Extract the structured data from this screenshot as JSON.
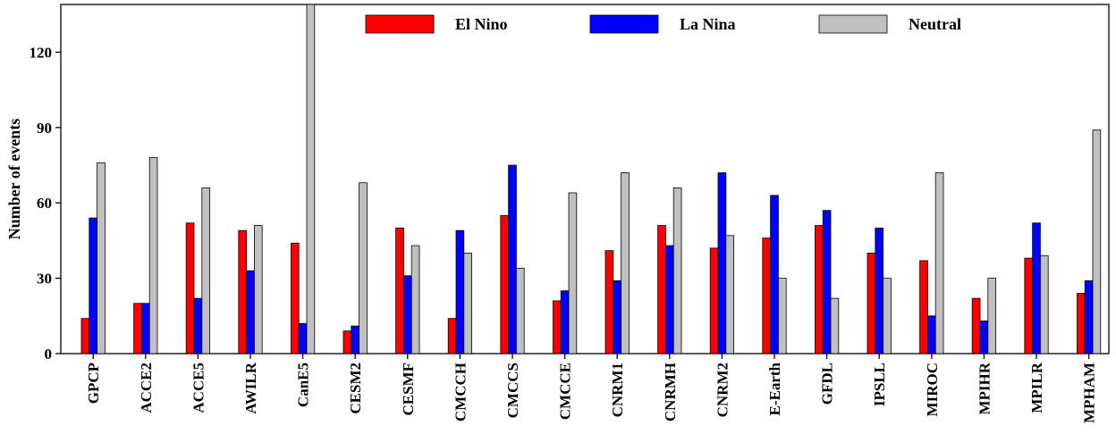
{
  "chart_data": {
    "type": "bar",
    "ylabel": "Number of events",
    "xlabel": "",
    "ylim": [
      0,
      139
    ],
    "yticks": [
      0,
      30,
      60,
      90,
      120
    ],
    "grid": false,
    "legend_position": "top-center",
    "categories": [
      "GPCP",
      "ACCE2",
      "ACCE5",
      "AWILR",
      "CanE5",
      "CESM2",
      "CESMF",
      "CMCCH",
      "CMCCS",
      "CMCCE",
      "CNRM1",
      "CNRMH",
      "CNRM2",
      "E-Earth",
      "GFDL",
      "IPSLL",
      "MIROC",
      "MPIHR",
      "MPILR",
      "MPHAM"
    ],
    "series": [
      {
        "name": "El Nino",
        "color": "#ff0000",
        "values": [
          14,
          20,
          52,
          49,
          44,
          9,
          50,
          14,
          55,
          21,
          41,
          51,
          42,
          46,
          51,
          40,
          37,
          22,
          38,
          24
        ]
      },
      {
        "name": "La Nina",
        "color": "#0000ff",
        "values": [
          54,
          20,
          22,
          33,
          12,
          11,
          31,
          49,
          75,
          25,
          29,
          43,
          72,
          63,
          57,
          50,
          15,
          13,
          52,
          29
        ]
      },
      {
        "name": "Neutral",
        "color": "#c0c0c0",
        "values": [
          76,
          78,
          66,
          51,
          139,
          68,
          43,
          40,
          34,
          64,
          72,
          66,
          47,
          30,
          22,
          30,
          72,
          30,
          39,
          89
        ]
      }
    ]
  }
}
